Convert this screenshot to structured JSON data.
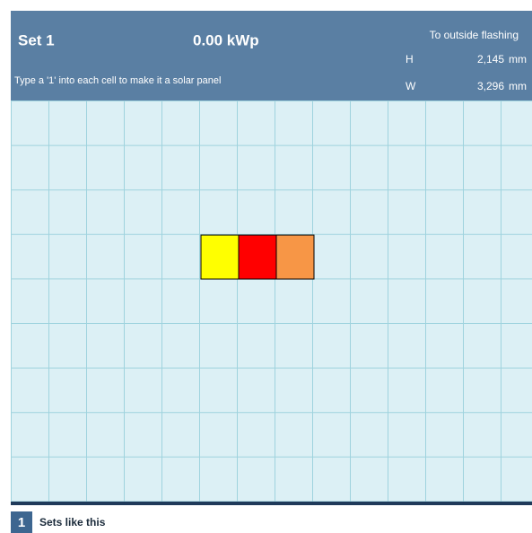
{
  "header": {
    "set_name": "Set 1",
    "power": "0.00 kWp",
    "instruction": "Type a '1' into each cell to make it a solar panel",
    "dimensions_title": "To outside flashing",
    "height_label": "H",
    "height_value": "2,145",
    "height_unit": "mm",
    "width_label": "W",
    "width_value": "3,296",
    "width_unit": "mm"
  },
  "footer": {
    "number": "1",
    "label": "Sets like this"
  }
}
